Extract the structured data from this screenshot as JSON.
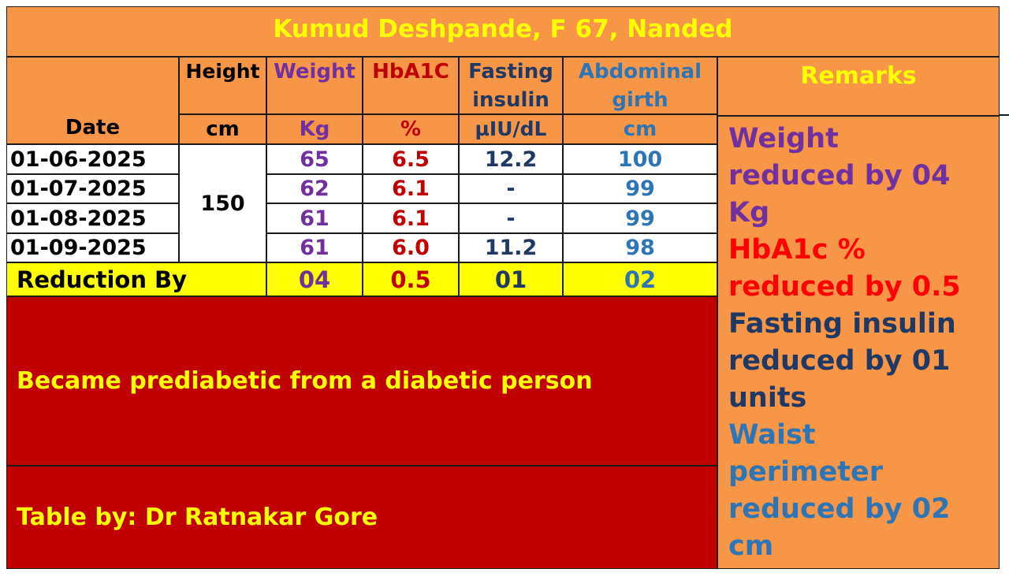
{
  "title": "Kumud Deshpande, F 67, Nanded",
  "columns": {
    "date": {
      "label": "Date"
    },
    "height": {
      "label": "Height",
      "unit": "cm"
    },
    "weight": {
      "label": "Weight",
      "unit": "Kg"
    },
    "hba1c": {
      "label": "HbA1C",
      "unit": "%"
    },
    "fasting_insulin": {
      "label_line1": "Fasting",
      "label_line2": "insulin",
      "unit": "µIU/dL"
    },
    "abdominal_girth": {
      "label_line1": "Abdominal",
      "label_line2": "girth",
      "unit": "cm"
    },
    "remarks": {
      "label": "Remarks"
    }
  },
  "height_value": "150",
  "rows": [
    {
      "date": "01-06-2025",
      "weight": "65",
      "hba1c": "6.5",
      "fasting_insulin": "12.2",
      "abdominal_girth": "100"
    },
    {
      "date": "01-07-2025",
      "weight": "62",
      "hba1c": "6.1",
      "fasting_insulin": "-",
      "abdominal_girth": "99"
    },
    {
      "date": "01-08-2025",
      "weight": "61",
      "hba1c": "6.1",
      "fasting_insulin": "-",
      "abdominal_girth": "99"
    },
    {
      "date": "01-09-2025",
      "weight": "61",
      "hba1c": "6.0",
      "fasting_insulin": "11.2",
      "abdominal_girth": "98"
    }
  ],
  "reduction": {
    "label": "Reduction By",
    "weight": "04",
    "hba1c": "0.5",
    "fasting_insulin": "01",
    "abdominal_girth": "02"
  },
  "summary": "Became prediabetic from a diabetic person",
  "credit": "Table by: Dr Ratnakar Gore",
  "remarks": {
    "weight": {
      "line1": "Weight",
      "line2": "reduced by 04",
      "line3": "Kg"
    },
    "hba1c": {
      "line1": "HbA1c %",
      "line2": "reduced by 0.5"
    },
    "fasting": {
      "line1": "Fasting insulin",
      "line2": "reduced by 01",
      "line3": "units"
    },
    "waist": {
      "line1": "Waist",
      "line2": "perimeter",
      "line3": "reduced by 02",
      "line4": "cm"
    }
  },
  "colors": {
    "background": "#f79646",
    "title_text": "#ffff00",
    "reduction_row": "#ffff00",
    "summary_block": "#c00000",
    "weight": "#7030a0",
    "hba1c": "#c00000",
    "fasting_insulin": "#1f3864",
    "abdominal_girth": "#2e75b6"
  }
}
